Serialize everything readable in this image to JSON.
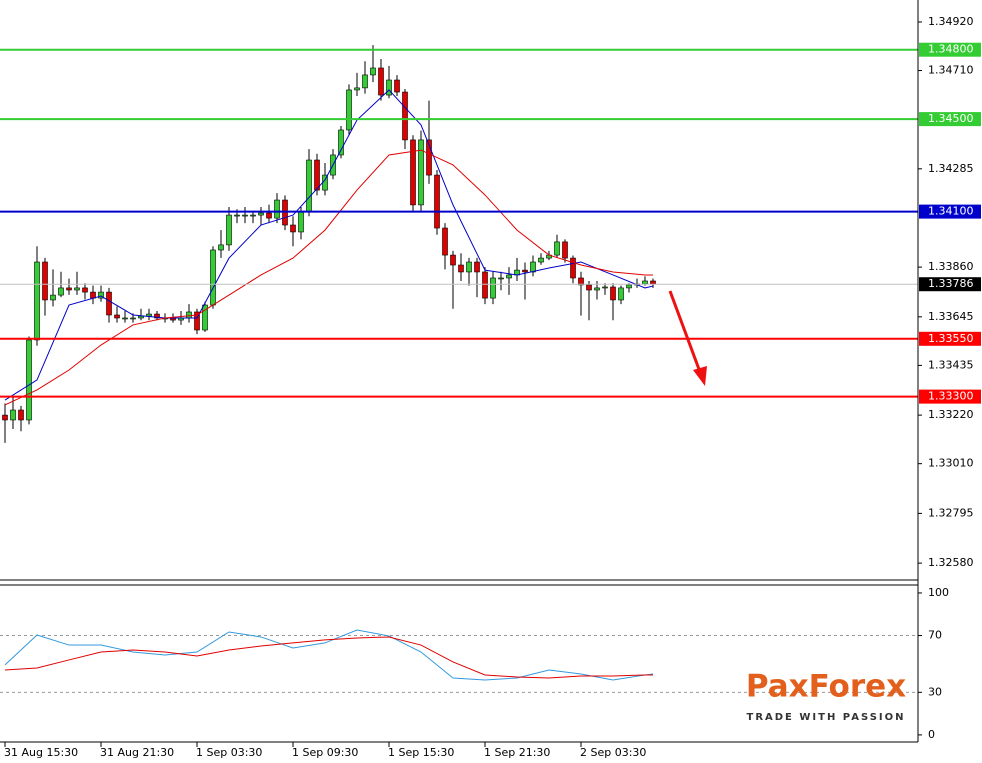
{
  "chart_data": [
    {
      "type": "candlestick",
      "categories": [
        "31 Aug 15:30",
        null,
        null,
        null,
        null,
        null,
        null,
        null,
        null,
        null,
        null,
        null,
        "31 Aug 21:30",
        null,
        null,
        null,
        null,
        null,
        null,
        null,
        null,
        null,
        null,
        null,
        "1 Sep 03:30",
        null,
        null,
        null,
        null,
        null,
        null,
        null,
        null,
        null,
        null,
        null,
        "1 Sep 09:30",
        null,
        null,
        null,
        null,
        null,
        null,
        null,
        null,
        null,
        null,
        null,
        "1 Sep 15:30",
        null,
        null,
        null,
        null,
        null,
        null,
        null,
        null,
        null,
        null,
        null,
        "1 Sep 21:30",
        null,
        null,
        null,
        null,
        null,
        null,
        null,
        null,
        null,
        null,
        null,
        "2 Sep 03:30",
        null,
        null,
        null,
        null,
        null,
        null,
        null,
        null,
        null
      ],
      "open": [
        1.3322,
        1.33199,
        1.33242,
        1.33199,
        1.33545,
        1.33882,
        1.33718,
        1.33739,
        1.3377,
        1.33761,
        1.3377,
        1.33752,
        1.33726,
        1.33752,
        1.33653,
        1.3364,
        1.3364,
        1.3364,
        1.33648,
        1.33657,
        1.3364,
        1.3364,
        1.33631,
        1.3364,
        1.33666,
        1.33588,
        1.33696,
        1.33934,
        1.33956,
        1.34085,
        1.34085,
        1.34085,
        1.34085,
        1.34094,
        1.34072,
        1.3415,
        1.34042,
        1.34012,
        1.34098,
        1.34323,
        1.34193,
        1.34258,
        1.34345,
        1.34453,
        1.34626,
        1.34635,
        1.34691,
        1.34721,
        1.34604,
        1.34669,
        1.34617,
        1.3441,
        1.34129,
        1.3441,
        1.34258,
        1.34029,
        1.33912,
        1.33869,
        1.33839,
        1.33882,
        1.33839,
        1.33726,
        1.33813,
        1.33813,
        1.33826,
        1.33847,
        1.33839,
        1.33882,
        1.33899,
        1.33912,
        1.33969,
        1.33899,
        1.33813,
        1.33783,
        1.33761,
        1.3377,
        1.33774,
        1.33718,
        1.3377,
        1.33783,
        1.33787,
        1.338
      ],
      "high": [
        1.3327,
        1.333,
        1.3326,
        1.3356,
        1.3395,
        1.339,
        1.3385,
        1.3384,
        1.3381,
        1.3384,
        1.3379,
        1.3378,
        1.3378,
        1.3377,
        1.3369,
        1.3367,
        1.3366,
        1.3368,
        1.3368,
        1.3367,
        1.3366,
        1.3366,
        1.3367,
        1.337,
        1.3368,
        1.3371,
        1.3395,
        1.3402,
        1.3412,
        1.3411,
        1.3412,
        1.341,
        1.3412,
        1.3413,
        1.3418,
        1.3417,
        1.3408,
        1.3412,
        1.3437,
        1.3435,
        1.3431,
        1.3437,
        1.3447,
        1.3465,
        1.347,
        1.3475,
        1.3482,
        1.3476,
        1.3473,
        1.3469,
        1.3463,
        1.3443,
        1.3445,
        1.3458,
        1.3428,
        1.3405,
        1.3393,
        1.3392,
        1.339,
        1.339,
        1.3386,
        1.3384,
        1.3384,
        1.3386,
        1.339,
        1.3388,
        1.3391,
        1.3392,
        1.3393,
        1.34,
        1.3398,
        1.3391,
        1.3384,
        1.338,
        1.338,
        1.3379,
        1.3379,
        1.3378,
        1.3379,
        1.3381,
        1.3382,
        1.3381
      ],
      "low": [
        1.331,
        1.3316,
        1.3315,
        1.3318,
        1.3352,
        1.3365,
        1.3369,
        1.3373,
        1.3374,
        1.3374,
        1.3372,
        1.337,
        1.3371,
        1.3362,
        1.3362,
        1.3362,
        1.3362,
        1.3363,
        1.3363,
        1.3363,
        1.3362,
        1.3362,
        1.3361,
        1.3362,
        1.3357,
        1.3358,
        1.3368,
        1.339,
        1.3393,
        1.3405,
        1.3405,
        1.3405,
        1.3404,
        1.3405,
        1.3405,
        1.3402,
        1.3395,
        1.3398,
        1.3408,
        1.3417,
        1.3417,
        1.3424,
        1.3433,
        1.3443,
        1.346,
        1.3461,
        1.3466,
        1.3458,
        1.3459,
        1.346,
        1.3437,
        1.341,
        1.341,
        1.3422,
        1.34,
        1.3385,
        1.3368,
        1.338,
        1.3378,
        1.3373,
        1.337,
        1.337,
        1.3376,
        1.3374,
        1.338,
        1.3372,
        1.3382,
        1.3387,
        1.3389,
        1.339,
        1.3388,
        1.3379,
        1.3365,
        1.3363,
        1.3372,
        1.3374,
        1.3363,
        1.337,
        1.3375,
        1.3377,
        1.3378,
        1.3377
      ],
      "close": [
        1.33199,
        1.33242,
        1.33199,
        1.33545,
        1.33882,
        1.33718,
        1.33739,
        1.3377,
        1.33761,
        1.3377,
        1.33752,
        1.33726,
        1.33752,
        1.33653,
        1.3364,
        1.3364,
        1.3364,
        1.33648,
        1.33657,
        1.3364,
        1.3364,
        1.33631,
        1.3364,
        1.33666,
        1.33588,
        1.33696,
        1.33934,
        1.33956,
        1.34085,
        1.34085,
        1.34085,
        1.34085,
        1.34094,
        1.34072,
        1.3415,
        1.34042,
        1.34012,
        1.34098,
        1.34323,
        1.34193,
        1.34258,
        1.34345,
        1.34453,
        1.34626,
        1.34635,
        1.34691,
        1.34721,
        1.34604,
        1.34669,
        1.34617,
        1.3441,
        1.34129,
        1.3441,
        1.34258,
        1.34029,
        1.33912,
        1.33869,
        1.33839,
        1.33882,
        1.33839,
        1.33726,
        1.33813,
        1.33813,
        1.33826,
        1.33847,
        1.33839,
        1.33882,
        1.33899,
        1.33912,
        1.33969,
        1.33899,
        1.33813,
        1.33783,
        1.33761,
        1.3377,
        1.33774,
        1.33718,
        1.3377,
        1.33783,
        1.33787,
        1.338,
        1.33786
      ],
      "up_color": "#32cd32",
      "down_color": "#e00000",
      "ylim": [
        1.32507,
        1.35015
      ],
      "yticks": [
        {
          "value": 1.3492,
          "label": "1.34920"
        },
        {
          "value": 1.3471,
          "label": "1.34710"
        },
        {
          "value": 1.34285,
          "label": "1.34285"
        },
        {
          "value": 1.3386,
          "label": "1.33860"
        },
        {
          "value": 1.33645,
          "label": "1.33645"
        },
        {
          "value": 1.33435,
          "label": "1.33435"
        },
        {
          "value": 1.3322,
          "label": "1.33220"
        },
        {
          "value": 1.3301,
          "label": "1.33010"
        },
        {
          "value": 1.32795,
          "label": "1.32795"
        },
        {
          "value": 1.3258,
          "label": "1.32580"
        }
      ],
      "lines": [
        {
          "color": "#0000cc",
          "x": [
            0,
            4,
            8,
            12,
            16,
            20,
            24,
            28,
            32,
            36,
            40,
            44,
            48,
            52,
            56,
            60,
            64,
            68,
            72,
            76,
            80,
            81
          ],
          "values": [
            1.33285,
            1.33372,
            1.33696,
            1.33735,
            1.33653,
            1.3364,
            1.3364,
            1.33899,
            1.34042,
            1.34085,
            1.34237,
            1.34496,
            1.34626,
            1.34475,
            1.34129,
            1.33847,
            1.33826,
            1.33856,
            1.33882,
            1.33826,
            1.3377,
            1.33778
          ]
        },
        {
          "color": "#e00000",
          "x": [
            0,
            4,
            8,
            12,
            16,
            20,
            24,
            28,
            32,
            36,
            40,
            44,
            48,
            52,
            56,
            60,
            64,
            68,
            72,
            76,
            80,
            81
          ],
          "values": [
            1.33264,
            1.33329,
            1.33415,
            1.33523,
            1.3361,
            1.3364,
            1.33653,
            1.33739,
            1.33826,
            1.33899,
            1.3402,
            1.34193,
            1.34345,
            1.34366,
            1.34302,
            1.34172,
            1.3402,
            1.33912,
            1.33869,
            1.33839,
            1.33826,
            1.33826
          ]
        }
      ],
      "levels": [
        {
          "value": 1.348,
          "label": "1.34800",
          "color": "#33cc33"
        },
        {
          "value": 1.345,
          "label": "1.34500",
          "color": "#33cc33"
        },
        {
          "value": 1.341,
          "label": "1.34100",
          "color": "#0000cc"
        },
        {
          "value": 1.3355,
          "label": "1.33550",
          "color": "#ff0000"
        },
        {
          "value": 1.333,
          "label": "1.33300",
          "color": "#ff0000"
        }
      ],
      "last_price": {
        "value": 1.33786,
        "label": "1.33786"
      }
    },
    {
      "type": "line",
      "x": [
        0,
        4,
        8,
        12,
        16,
        20,
        24,
        28,
        32,
        36,
        40,
        44,
        48,
        52,
        56,
        60,
        64,
        68,
        72,
        76,
        80,
        81
      ],
      "series": [
        {
          "color": "#3399dd",
          "values": [
            49.3,
            70.4,
            63.3,
            63.3,
            58.4,
            56.3,
            58.4,
            72.5,
            69,
            61.2,
            64.8,
            73.9,
            69.7,
            58.4,
            40.1,
            38.7,
            40.1,
            45.7,
            42.9,
            38.7,
            42.2,
            42.9
          ]
        },
        {
          "color": "#e00000",
          "values": [
            45.7,
            47.1,
            52.8,
            58.4,
            59.8,
            58.4,
            55.6,
            59.8,
            62.6,
            64.8,
            66.9,
            68.3,
            69,
            63.3,
            51.4,
            42.2,
            40.8,
            40.1,
            41.5,
            41.5,
            42.2,
            42.2
          ]
        }
      ],
      "ylim": [
        -5,
        105.6
      ],
      "yticks": [
        0,
        30,
        70,
        100
      ],
      "levels": [
        30,
        70
      ]
    }
  ],
  "logo": {
    "brand": "PaxForex",
    "tagline": "TRADE WITH PASSION"
  }
}
